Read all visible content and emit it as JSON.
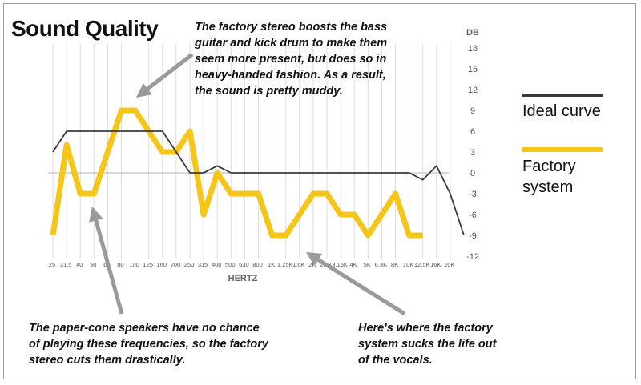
{
  "title": "Sound Quality",
  "annotations": {
    "top": "The factory stereo boosts the bass\nguitar and kick drum to make them\nseem more present, but does so in\nheavy-handed fashion. As a result,\nthe sound is pretty muddy.",
    "bottom_left": "The paper-cone speakers have no chance\nof playing these frequencies, so the factory\nstereo cuts them drastically.",
    "bottom_right": "Here's where the factory\nsystem sucks the life out\nof the vocals."
  },
  "chart_data": {
    "type": "line",
    "xlabel": "HERTZ",
    "ylabel": "DB",
    "categories": [
      "25",
      "31.5",
      "40",
      "50",
      "63",
      "80",
      "100",
      "125",
      "160",
      "200",
      "250",
      "315",
      "400",
      "500",
      "630",
      "800",
      "1K",
      "1.25K",
      "1.6K",
      "2K",
      "2.5K",
      "3.15K",
      "4K",
      "5K",
      "6.3K",
      "8K",
      "10K",
      "12.5K",
      "16K",
      "20K"
    ],
    "yticks": [
      18,
      15,
      12,
      9,
      6,
      3,
      0,
      -3,
      -6,
      -9,
      -12
    ],
    "ylim": [
      -12,
      18
    ],
    "grid": true,
    "legend_position": "right",
    "series": [
      {
        "name": "Ideal curve",
        "color": "#3a3a3a",
        "points": [
          [
            0,
            3
          ],
          [
            1,
            6
          ],
          [
            6,
            6
          ],
          [
            8,
            6
          ],
          [
            9,
            3
          ],
          [
            10,
            0
          ],
          [
            11,
            0
          ],
          [
            12,
            1
          ],
          [
            13,
            0
          ],
          [
            26,
            0
          ],
          [
            27,
            -1
          ],
          [
            28,
            1
          ],
          [
            29,
            -3
          ],
          [
            30,
            -9
          ]
        ]
      },
      {
        "name": "Factory system",
        "color": "#f5c518",
        "points": [
          [
            0,
            -9
          ],
          [
            1,
            4
          ],
          [
            2,
            -3
          ],
          [
            3,
            -3
          ],
          [
            5,
            9
          ],
          [
            6,
            9
          ],
          [
            8,
            3
          ],
          [
            9,
            3
          ],
          [
            10,
            6
          ],
          [
            11,
            -6
          ],
          [
            12,
            0
          ],
          [
            13,
            -3
          ],
          [
            15,
            -3
          ],
          [
            16,
            -9
          ],
          [
            17,
            -9
          ],
          [
            19,
            -3
          ],
          [
            20,
            -3
          ],
          [
            21,
            -6
          ],
          [
            22,
            -6
          ],
          [
            23,
            -9
          ],
          [
            25,
            -3
          ],
          [
            26,
            -9
          ],
          [
            27,
            -9
          ]
        ]
      }
    ]
  }
}
